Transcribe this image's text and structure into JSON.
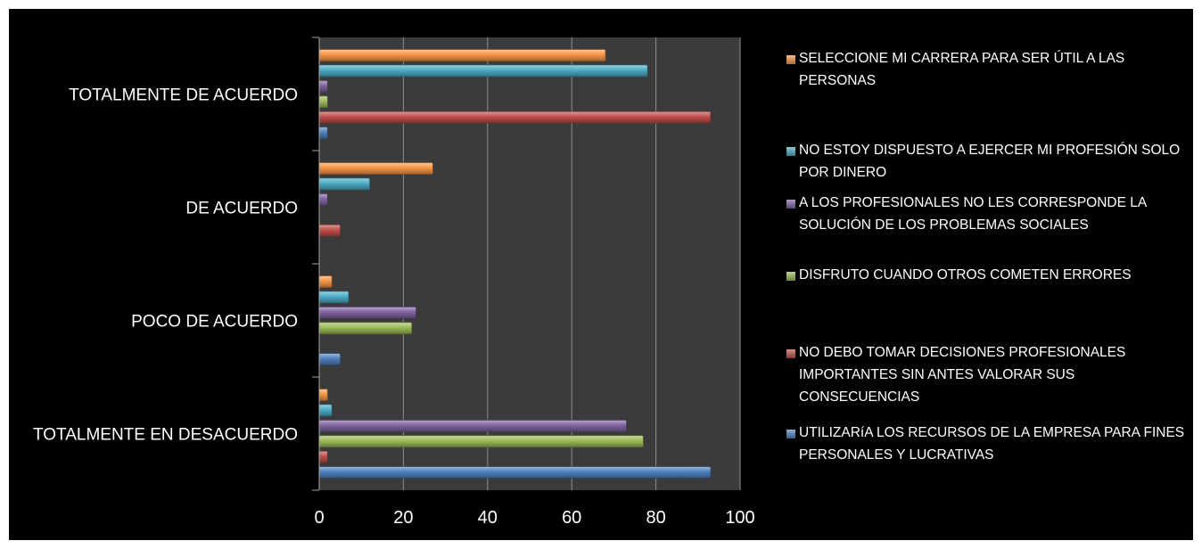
{
  "chart_data": {
    "type": "bar",
    "orientation": "horizontal",
    "title": "",
    "xlabel": "",
    "ylabel": "",
    "xlim": [
      0,
      100
    ],
    "x_ticks": [
      "0",
      "20",
      "40",
      "60",
      "80",
      "100"
    ],
    "grid": true,
    "legend_position": "right",
    "categories": [
      "TOTALMENTE EN DESACUERDO",
      "POCO DE ACUERDO",
      "DE ACUERDO",
      "TOTALMENTE DE ACUERDO"
    ],
    "series": [
      {
        "name": "UTILIZARíA LOS RECURSOS DE LA EMPRESA PARA FINES PERSONALES Y LUCRATIVAS",
        "color": "#4F81BD",
        "values": [
          93,
          5,
          0,
          2
        ]
      },
      {
        "name": "NO DEBO TOMAR DECISIONES PROFESIONALES IMPORTANTES SIN ANTES VALORAR SUS CONSECUENCIAS",
        "color": "#C0504D",
        "values": [
          2,
          0,
          5,
          93
        ]
      },
      {
        "name": "DISFRUTO CUANDO OTROS COMETEN ERRORES",
        "color": "#9BBB59",
        "values": [
          77,
          22,
          0,
          2
        ]
      },
      {
        "name": "A LOS PROFESIONALES NO LES CORRESPONDE LA SOLUCIÓN DE LOS PROBLEMAS SOCIALES",
        "color": "#8064A2",
        "values": [
          73,
          23,
          2,
          2
        ]
      },
      {
        "name": "NO ESTOY DISPUESTO A EJERCER MI PROFESIÓN SOLO POR DINERO",
        "color": "#4BACC6",
        "values": [
          3,
          7,
          12,
          78
        ]
      },
      {
        "name": "SELECCIONE MI CARRERA PARA SER ÚTIL A LAS PERSONAS",
        "color": "#F79646",
        "values": [
          2,
          3,
          27,
          68
        ]
      }
    ]
  }
}
